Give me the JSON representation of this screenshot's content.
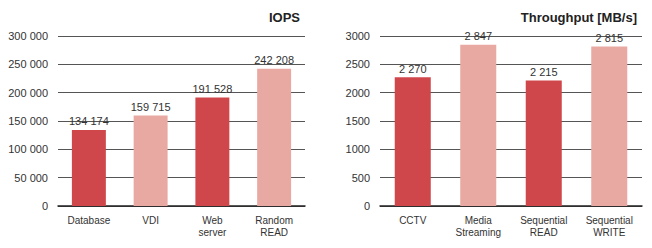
{
  "chart_data": [
    {
      "type": "bar",
      "title": "IOPS",
      "categories": [
        "Database",
        "VDI",
        "Web server",
        "Random READ"
      ],
      "values": [
        134174,
        159715,
        191528,
        242208
      ],
      "value_labels": [
        "134 174",
        "159 715",
        "191 528",
        "242 208"
      ],
      "colors": [
        "#d0474b",
        "#e9a9a3",
        "#d0474b",
        "#e9a9a3"
      ],
      "ylim": [
        0,
        300000
      ],
      "yticks": [
        0,
        {
          "value": 50000,
          "label": "50 000"
        },
        {
          "value": 100000,
          "label": "100 000"
        },
        {
          "value": 150000,
          "label": "150 000"
        },
        {
          "value": 200000,
          "label": "200 000"
        },
        {
          "value": 250000,
          "label": "250 000"
        },
        {
          "value": 300000,
          "label": "300 000"
        }
      ],
      "grid": true,
      "data_labels": true
    },
    {
      "type": "bar",
      "title": "Throughput [MB/s]",
      "categories": [
        "CCTV",
        "Media Streaming",
        "Sequential READ",
        "Sequential WRITE"
      ],
      "values": [
        2270,
        2847,
        2215,
        2815
      ],
      "value_labels": [
        "2 270",
        "2 847",
        "2 215",
        "2 815"
      ],
      "colors": [
        "#d0474b",
        "#e9a9a3",
        "#d0474b",
        "#e9a9a3"
      ],
      "ylim": [
        0,
        3000
      ],
      "yticks": [
        0,
        500,
        1000,
        1500,
        2000,
        2500,
        3000
      ],
      "grid": true,
      "data_labels": true
    }
  ]
}
